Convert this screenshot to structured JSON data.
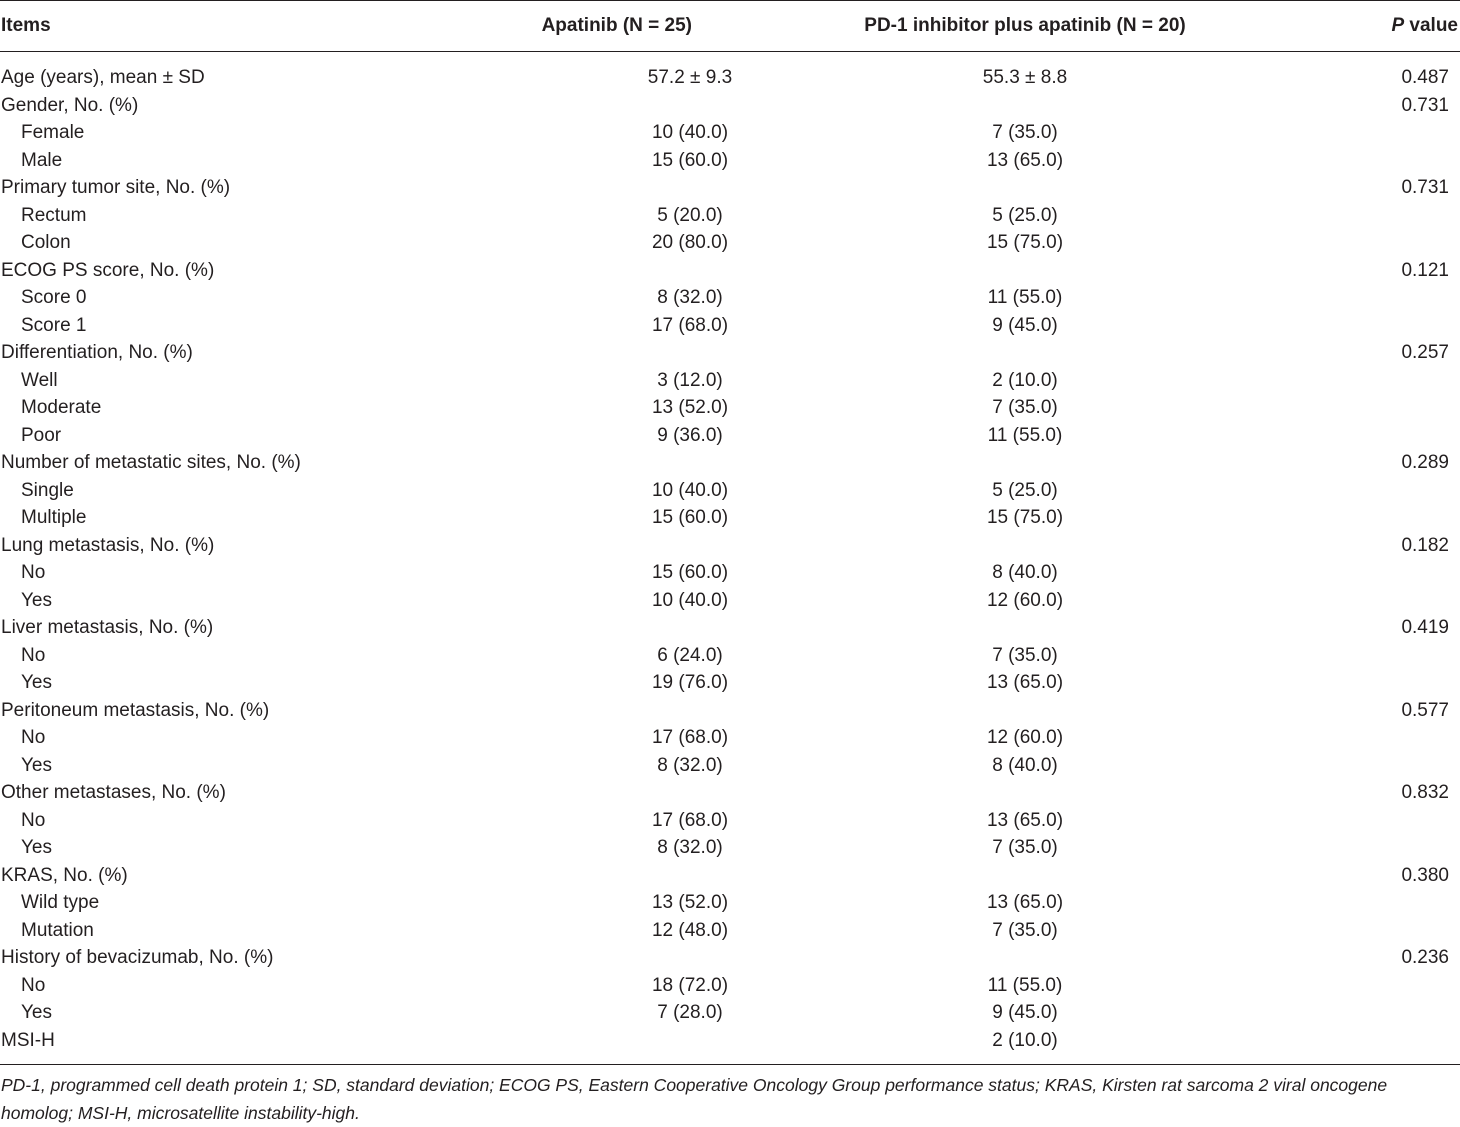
{
  "headers": {
    "items": "Items",
    "apatinib": "Apatinib (N = 25)",
    "combo": "PD-1 inhibitor plus apatinib (N = 20)",
    "p_italic": "P",
    "p_rest": " value"
  },
  "rows": [
    {
      "label": "Age (years), mean ± SD",
      "apa": "57.2 ± 9.3",
      "combo": "55.3 ± 8.8",
      "p": "0.487",
      "sub": false
    },
    {
      "label": "Gender, No. (%)",
      "apa": "",
      "combo": "",
      "p": "0.731",
      "sub": false
    },
    {
      "label": "Female",
      "apa": "10 (40.0)",
      "combo": "7 (35.0)",
      "p": "",
      "sub": true
    },
    {
      "label": "Male",
      "apa": "15 (60.0)",
      "combo": "13 (65.0)",
      "p": "",
      "sub": true
    },
    {
      "label": "Primary tumor site, No. (%)",
      "apa": "",
      "combo": "",
      "p": "0.731",
      "sub": false
    },
    {
      "label": "Rectum",
      "apa": "5 (20.0)",
      "combo": "5 (25.0)",
      "p": "",
      "sub": true
    },
    {
      "label": "Colon",
      "apa": "20 (80.0)",
      "combo": "15 (75.0)",
      "p": "",
      "sub": true
    },
    {
      "label": "ECOG PS score, No. (%)",
      "apa": "",
      "combo": "",
      "p": "0.121",
      "sub": false
    },
    {
      "label": "Score 0",
      "apa": "8 (32.0)",
      "combo": "11 (55.0)",
      "p": "",
      "sub": true
    },
    {
      "label": "Score 1",
      "apa": "17 (68.0)",
      "combo": "9 (45.0)",
      "p": "",
      "sub": true
    },
    {
      "label": "Differentiation, No. (%)",
      "apa": "",
      "combo": "",
      "p": "0.257",
      "sub": false
    },
    {
      "label": "Well",
      "apa": "3 (12.0)",
      "combo": "2 (10.0)",
      "p": "",
      "sub": true
    },
    {
      "label": "Moderate",
      "apa": "13 (52.0)",
      "combo": "7 (35.0)",
      "p": "",
      "sub": true
    },
    {
      "label": "Poor",
      "apa": "9 (36.0)",
      "combo": "11 (55.0)",
      "p": "",
      "sub": true
    },
    {
      "label": "Number of metastatic sites, No. (%)",
      "apa": "",
      "combo": "",
      "p": "0.289",
      "sub": false
    },
    {
      "label": "Single",
      "apa": "10 (40.0)",
      "combo": "5 (25.0)",
      "p": "",
      "sub": true
    },
    {
      "label": "Multiple",
      "apa": "15 (60.0)",
      "combo": "15 (75.0)",
      "p": "",
      "sub": true
    },
    {
      "label": "Lung metastasis, No. (%)",
      "apa": "",
      "combo": "",
      "p": "0.182",
      "sub": false
    },
    {
      "label": "No",
      "apa": "15 (60.0)",
      "combo": "8 (40.0)",
      "p": "",
      "sub": true
    },
    {
      "label": "Yes",
      "apa": "10 (40.0)",
      "combo": "12 (60.0)",
      "p": "",
      "sub": true
    },
    {
      "label": "Liver metastasis, No. (%)",
      "apa": "",
      "combo": "",
      "p": "0.419",
      "sub": false
    },
    {
      "label": "No",
      "apa": "6 (24.0)",
      "combo": "7 (35.0)",
      "p": "",
      "sub": true
    },
    {
      "label": "Yes",
      "apa": "19 (76.0)",
      "combo": "13 (65.0)",
      "p": "",
      "sub": true
    },
    {
      "label": "Peritoneum metastasis, No. (%)",
      "apa": "",
      "combo": "",
      "p": "0.577",
      "sub": false
    },
    {
      "label": "No",
      "apa": "17 (68.0)",
      "combo": "12 (60.0)",
      "p": "",
      "sub": true
    },
    {
      "label": "Yes",
      "apa": "8 (32.0)",
      "combo": "8 (40.0)",
      "p": "",
      "sub": true
    },
    {
      "label": "Other metastases, No. (%)",
      "apa": "",
      "combo": "",
      "p": "0.832",
      "sub": false
    },
    {
      "label": "No",
      "apa": "17 (68.0)",
      "combo": "13 (65.0)",
      "p": "",
      "sub": true
    },
    {
      "label": "Yes",
      "apa": "8 (32.0)",
      "combo": "7 (35.0)",
      "p": "",
      "sub": true
    },
    {
      "label": "KRAS, No. (%)",
      "apa": "",
      "combo": "",
      "p": "0.380",
      "sub": false
    },
    {
      "label": "Wild type",
      "apa": "13 (52.0)",
      "combo": "13 (65.0)",
      "p": "",
      "sub": true
    },
    {
      "label": "Mutation",
      "apa": "12 (48.0)",
      "combo": "7 (35.0)",
      "p": "",
      "sub": true
    },
    {
      "label": "History of bevacizumab, No. (%)",
      "apa": "",
      "combo": "",
      "p": "0.236",
      "sub": false
    },
    {
      "label": "No",
      "apa": "18 (72.0)",
      "combo": "11 (55.0)",
      "p": "",
      "sub": true
    },
    {
      "label": "Yes",
      "apa": "7 (28.0)",
      "combo": "9 (45.0)",
      "p": "",
      "sub": true
    },
    {
      "label": "MSI-H",
      "apa": "",
      "combo": "2 (10.0)",
      "p": "",
      "sub": false
    }
  ],
  "footnote": "PD-1, programmed cell death protein 1; SD, standard deviation; ECOG PS, Eastern Cooperative Oncology Group performance status; KRAS, Kirsten rat sarcoma 2 viral oncogene homolog; MSI-H, microsatellite instability-high."
}
